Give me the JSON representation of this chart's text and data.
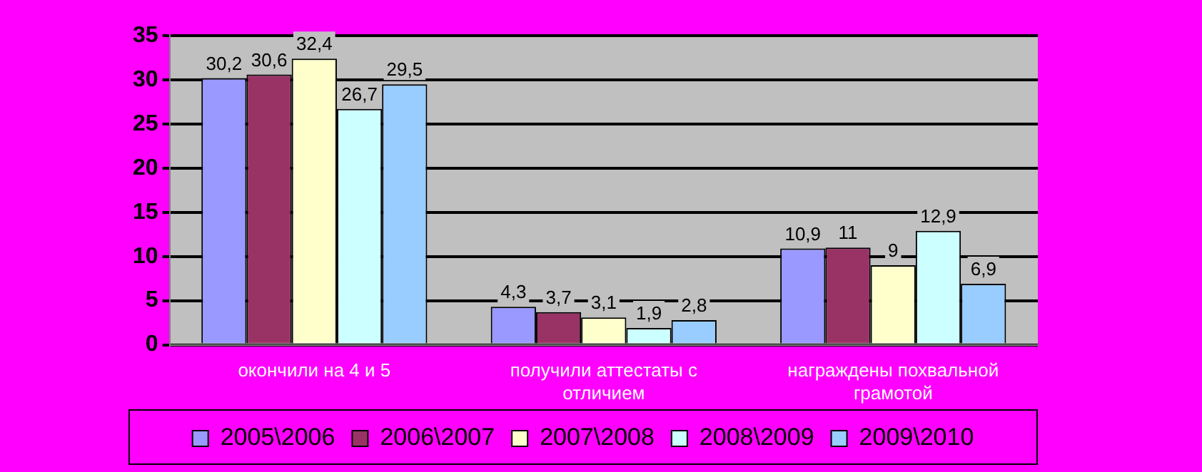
{
  "chart_data": {
    "type": "bar",
    "categories": [
      "окончили на 4 и 5",
      "получили аттестаты с отличием",
      "награждены похвальной грамотой"
    ],
    "series": [
      {
        "name": "2005\\2006",
        "color": "#9999ff",
        "values": [
          30.2,
          4.3,
          10.9
        ],
        "value_labels": [
          "30,2",
          "4,3",
          "10,9"
        ]
      },
      {
        "name": "2006\\2007",
        "color": "#993366",
        "values": [
          30.6,
          3.7,
          11
        ],
        "value_labels": [
          "30,6",
          "3,7",
          "11"
        ]
      },
      {
        "name": "2007\\2008",
        "color": "#ffffcc",
        "values": [
          32.4,
          3.1,
          9
        ],
        "value_labels": [
          "32,4",
          "3,1",
          "9"
        ]
      },
      {
        "name": "2008\\2009",
        "color": "#ccffff",
        "values": [
          26.7,
          1.9,
          12.9
        ],
        "value_labels": [
          "26,7",
          "1,9",
          "12,9"
        ]
      },
      {
        "name": "2009\\2010",
        "color": "#99ccff",
        "values": [
          29.5,
          2.8,
          6.9
        ],
        "value_labels": [
          "29,5",
          "2,8",
          "6,9"
        ]
      }
    ],
    "ylim": [
      0,
      35
    ],
    "yticks": [
      0,
      5,
      10,
      15,
      20,
      25,
      30,
      35
    ],
    "grid": "y",
    "legend": "bottom"
  }
}
